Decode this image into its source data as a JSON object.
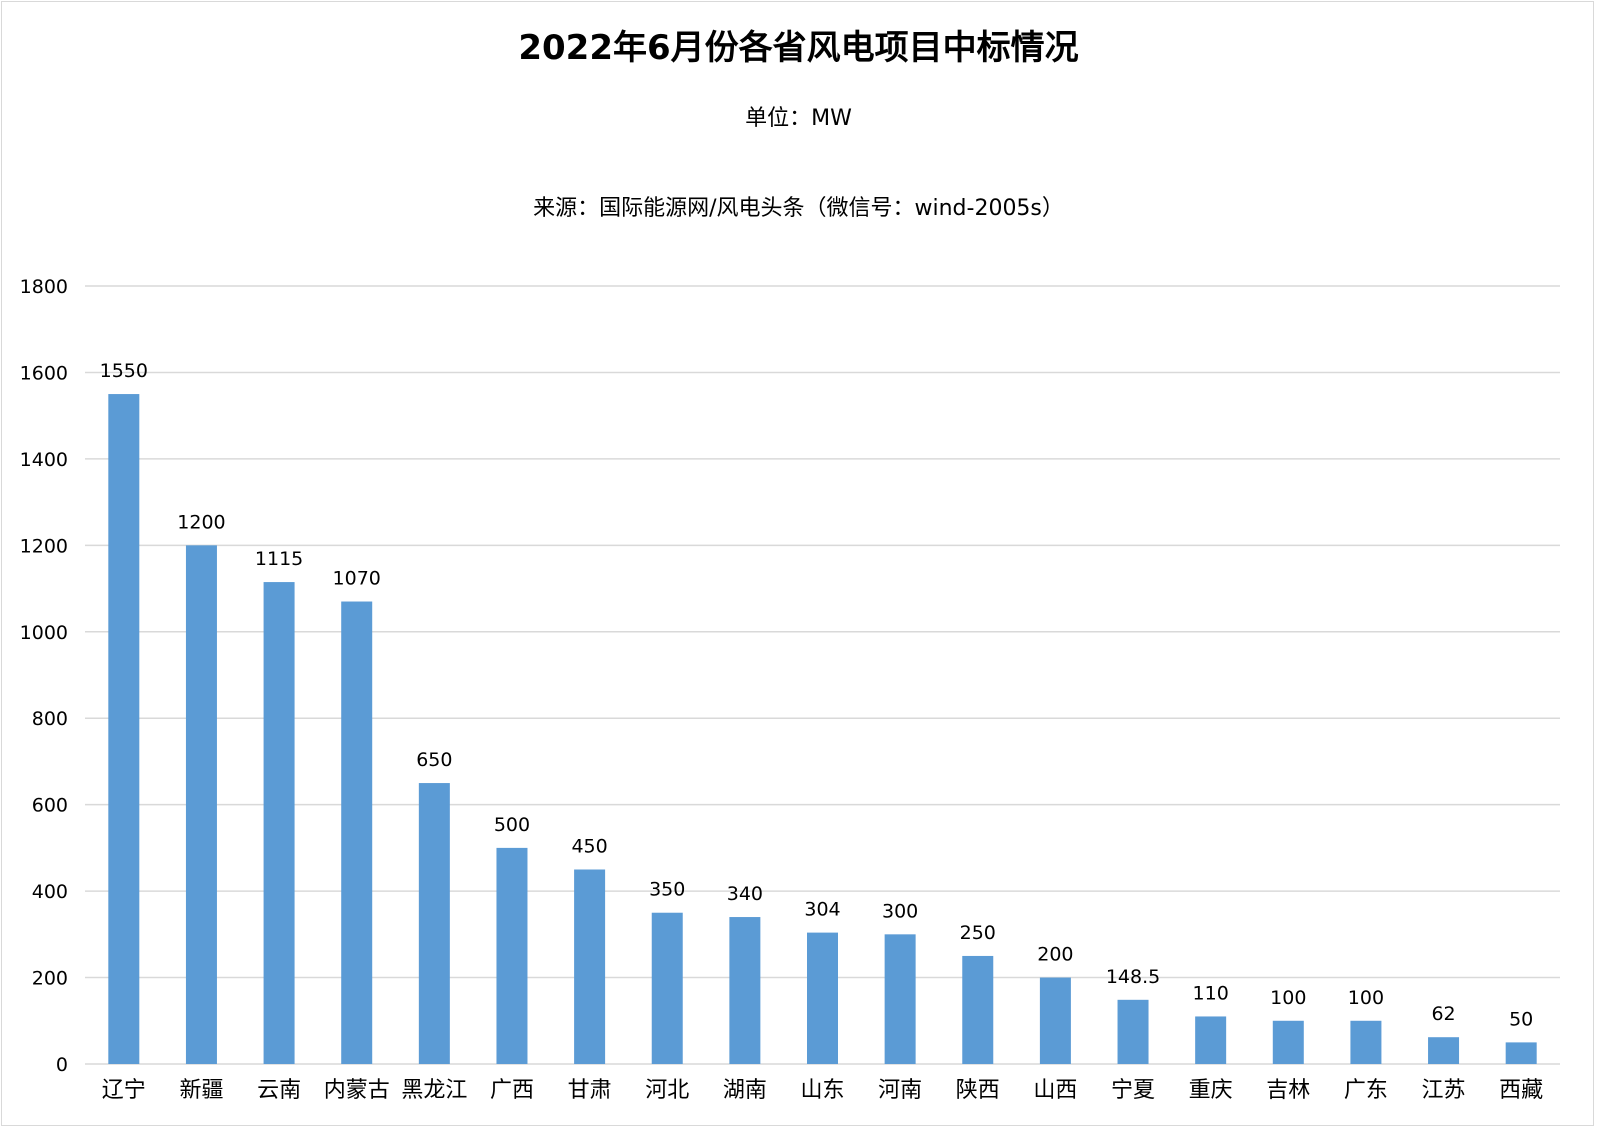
{
  "chart_data": {
    "type": "bar",
    "title": "2022年6月份各省风电项目中标情况",
    "unit_text": "单位：MW",
    "source_text": "来源：国际能源网/风电头条（微信号：wind-2005s）",
    "categories": [
      "辽宁",
      "新疆",
      "云南",
      "内蒙古",
      "黑龙江",
      "广西",
      "甘肃",
      "河北",
      "湖南",
      "山东",
      "河南",
      "陕西",
      "山西",
      "宁夏",
      "重庆",
      "吉林",
      "广东",
      "江苏",
      "西藏"
    ],
    "values": [
      1550,
      1200,
      1115,
      1070,
      650,
      500,
      450,
      350,
      340,
      304,
      300,
      250,
      200,
      148.5,
      110,
      100,
      100,
      62,
      50
    ],
    "value_labels": [
      "1550",
      "1200",
      "1115",
      "1070",
      "650",
      "500",
      "450",
      "350",
      "340",
      "304",
      "300",
      "250",
      "200",
      "148.5",
      "110",
      "100",
      "100",
      "62",
      "50"
    ],
    "y_ticks": [
      0,
      200,
      400,
      600,
      800,
      1000,
      1200,
      1400,
      1600,
      1800
    ],
    "ylim": [
      0,
      1800
    ],
    "grid": true,
    "legend": "none",
    "colors": {
      "bar": "#5b9bd5",
      "grid": "#d9d9d9"
    }
  }
}
